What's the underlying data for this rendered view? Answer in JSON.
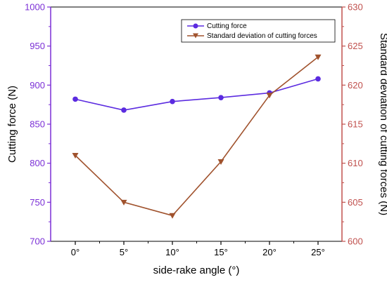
{
  "chart_data": {
    "type": "line",
    "x": [
      "0°",
      "5°",
      "10°",
      "15°",
      "20°",
      "25°"
    ],
    "xlabel": "side-rake angle (°)",
    "y_left": {
      "label": "Cutting force (N)",
      "range": [
        700,
        1000
      ],
      "ticks": [
        "700",
        "750",
        "800",
        "850",
        "900",
        "950",
        "1000"
      ],
      "color": "#7B2FD6"
    },
    "y_right": {
      "label": "Standard deviation of cutting forces (N)",
      "range": [
        600,
        630
      ],
      "ticks": [
        "600",
        "605",
        "610",
        "615",
        "620",
        "625",
        "630"
      ],
      "color": "#C0504D"
    },
    "series": [
      {
        "name": "Cutting force",
        "axis": "left",
        "values": [
          882,
          868,
          879,
          884,
          890,
          908
        ],
        "color": "#5B2BE0",
        "marker": "circle"
      },
      {
        "name": "Standard deviation of cutting forces",
        "axis": "right",
        "values": [
          611,
          605,
          603.3,
          610.2,
          618.7,
          623.6
        ],
        "color": "#A0522D",
        "marker": "triangle-down"
      }
    ],
    "legend_position": "top-right",
    "grid": false
  }
}
